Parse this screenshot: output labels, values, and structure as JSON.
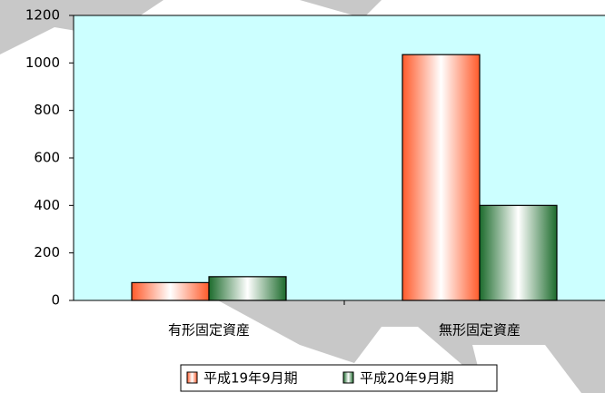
{
  "chart_data": {
    "type": "bar",
    "categories": [
      "有形固定資産",
      "無形固定資産"
    ],
    "series": [
      {
        "name": "平成19年9月期",
        "color": "#ff5a2a",
        "values": [
          75,
          1035
        ]
      },
      {
        "name": "平成20年9月期",
        "color": "#1c6b2c",
        "values": [
          100,
          400
        ]
      }
    ],
    "ylim": [
      0,
      1200
    ],
    "yticks": [
      0,
      200,
      400,
      600,
      800,
      1000,
      1200
    ],
    "grid": false,
    "legend": "bottom"
  }
}
